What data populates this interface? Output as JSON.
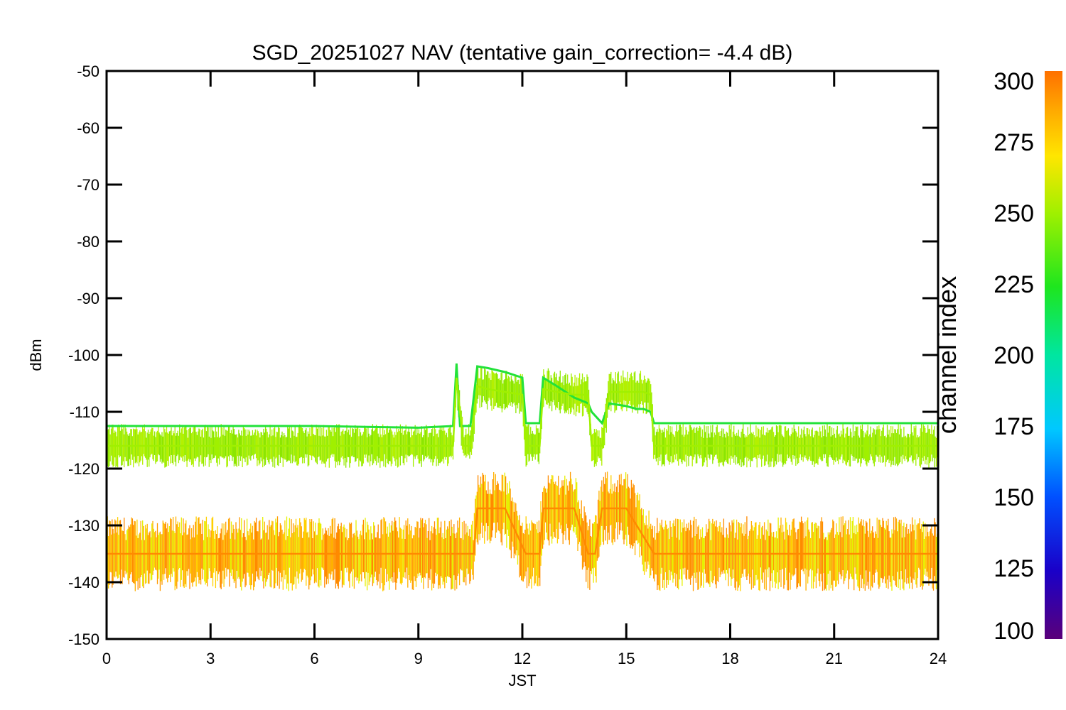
{
  "chart_data": {
    "type": "scatter",
    "title": "SGD_20251027 NAV (tentative gain_correction= -4.4 dB)",
    "xlabel": "JST",
    "ylabel": "dBm",
    "xlim": [
      0,
      24
    ],
    "ylim": [
      -150,
      -50
    ],
    "xticks": [
      "0",
      "3",
      "6",
      "9",
      "12",
      "15",
      "18",
      "21",
      "24"
    ],
    "yticks": [
      "-50",
      "-60",
      "-70",
      "-80",
      "-90",
      "-100",
      "-110",
      "-120",
      "-130",
      "-140",
      "-150"
    ],
    "colorbar": {
      "label": "channel index",
      "range": [
        100,
        300
      ],
      "ticks": [
        "300",
        "275",
        "250",
        "225",
        "200",
        "175",
        "150",
        "125",
        "100"
      ]
    },
    "series": [
      {
        "name": "channel ~215 (green trace)",
        "color": "#22e23a",
        "x": [
          0,
          3,
          6,
          9,
          10.0,
          10.1,
          10.2,
          10.5,
          10.7,
          11.0,
          11.5,
          12.0,
          12.1,
          12.5,
          12.6,
          13.0,
          13.5,
          13.9,
          14.0,
          14.3,
          14.5,
          15.0,
          15.3,
          15.5,
          15.7,
          15.8,
          18,
          21,
          24
        ],
        "y": [
          -112.5,
          -112.5,
          -112.5,
          -112.8,
          -112.5,
          -101.5,
          -112.5,
          -112.5,
          -102,
          -102.3,
          -103,
          -104,
          -112,
          -112,
          -104,
          -105.5,
          -107.5,
          -108.5,
          -110,
          -112,
          -108.5,
          -109,
          -109.5,
          -109.5,
          -110,
          -112,
          -112,
          -112,
          -112
        ]
      },
      {
        "name": "channel ~245 (yellow-green band)",
        "color": "#a0f000",
        "x": [
          0,
          3,
          6,
          9,
          10.0,
          10.1,
          10.3,
          10.5,
          10.7,
          11.0,
          11.5,
          12.0,
          12.1,
          12.5,
          12.6,
          13.0,
          13.5,
          13.9,
          14.0,
          14.3,
          14.5,
          15.0,
          15.5,
          15.7,
          15.8,
          18,
          21,
          24
        ],
        "y": [
          -116,
          -116,
          -116,
          -116,
          -116,
          -104,
          -116,
          -116,
          -105.5,
          -106,
          -106.5,
          -107,
          -116,
          -116,
          -106,
          -106.5,
          -107,
          -107,
          -116,
          -116,
          -106.5,
          -106.5,
          -106.5,
          -107,
          -116,
          -116,
          -116,
          -116
        ]
      },
      {
        "name": "channel ~285 (orange band)",
        "color": "#ff8a00",
        "x": [
          0,
          3,
          6,
          9,
          10.0,
          10.6,
          10.7,
          11.5,
          12.1,
          12.5,
          12.6,
          13.5,
          13.9,
          14.1,
          14.3,
          14.5,
          15.0,
          15.8,
          18,
          21,
          24
        ],
        "y": [
          -135,
          -135,
          -135,
          -135,
          -135,
          -135,
          -127,
          -127,
          -135,
          -135,
          -127,
          -127,
          -135,
          -135,
          -127,
          -127,
          -127,
          -135,
          -135,
          -135,
          -135
        ]
      }
    ]
  }
}
